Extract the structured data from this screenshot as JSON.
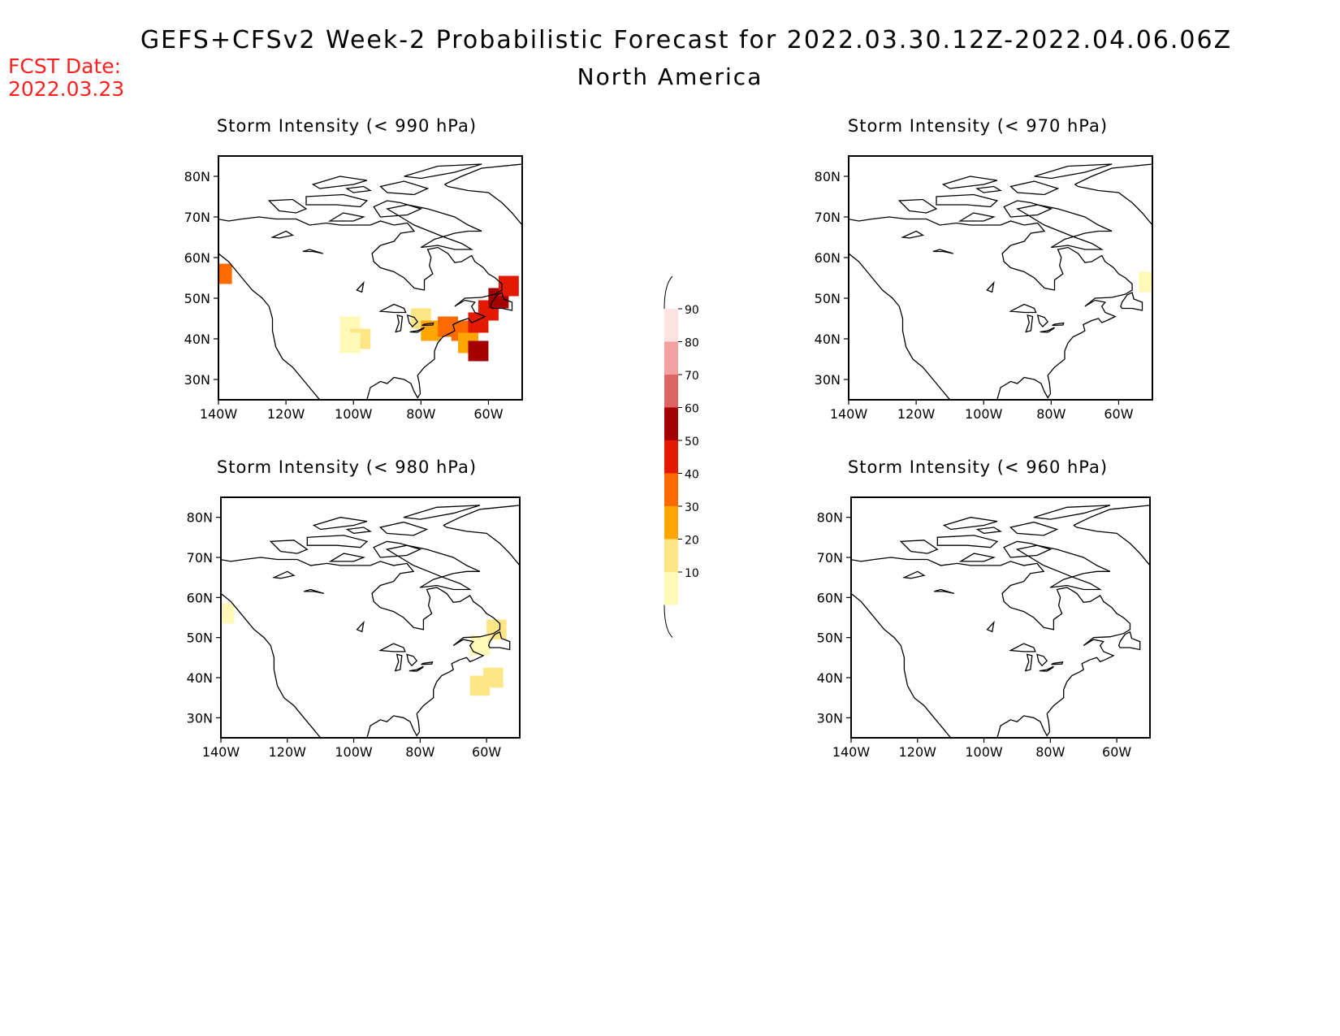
{
  "header": {
    "title": "GEFS+CFSv2 Week-2 Probabilistic Forecast for 2022.03.30.12Z-2022.04.06.06Z",
    "subtitle": "North America",
    "fcst_date_label": "FCST Date:",
    "fcst_date_value": "2022.03.23",
    "fcst_color": "#ff2020"
  },
  "panels": [
    {
      "title": "Storm Intensity (< 990 hPa)"
    },
    {
      "title": "Storm Intensity (< 970 hPa)"
    },
    {
      "title": "Storm Intensity (< 980 hPa)"
    },
    {
      "title": "Storm Intensity (< 960 hPa)"
    }
  ],
  "axes": {
    "lon_ticks": [
      "140W",
      "120W",
      "100W",
      "80W",
      "60W"
    ],
    "lat_ticks": [
      "80N",
      "70N",
      "60N",
      "50N",
      "40N",
      "30N"
    ]
  },
  "colorbar": {
    "levels": [
      "10",
      "20",
      "30",
      "40",
      "50",
      "60",
      "70",
      "80",
      "90"
    ],
    "colors": [
      "#fff9b8",
      "#fde686",
      "#fea500",
      "#ff6a00",
      "#e41a00",
      "#a50000",
      "#dc6464",
      "#f5a0a0",
      "#fde2e2"
    ]
  },
  "chart_data": {
    "type": "heatmap",
    "extent": {
      "lon": [
        -140,
        -50
      ],
      "lat": [
        25,
        85
      ]
    },
    "panels": [
      {
        "threshold": "< 990 hPa",
        "cells": [
          {
            "lon": -139,
            "lat": 56,
            "prob": 45
          },
          {
            "lon": -101,
            "lat": 43,
            "prob": 15
          },
          {
            "lon": -98,
            "lat": 40,
            "prob": 20
          },
          {
            "lon": -101,
            "lat": 39,
            "prob": 10
          },
          {
            "lon": -80,
            "lat": 45,
            "prob": 20
          },
          {
            "lon": -77,
            "lat": 42,
            "prob": 30
          },
          {
            "lon": -72,
            "lat": 43,
            "prob": 45
          },
          {
            "lon": -68,
            "lat": 42,
            "prob": 40
          },
          {
            "lon": -63,
            "lat": 44,
            "prob": 50
          },
          {
            "lon": -60,
            "lat": 47,
            "prob": 55
          },
          {
            "lon": -57,
            "lat": 50,
            "prob": 60
          },
          {
            "lon": -54,
            "lat": 53,
            "prob": 55
          },
          {
            "lon": -66,
            "lat": 39,
            "prob": 30
          },
          {
            "lon": -63,
            "lat": 37,
            "prob": 65
          }
        ]
      },
      {
        "threshold": "< 970 hPa",
        "cells": [
          {
            "lon": -51,
            "lat": 54,
            "prob": 10
          }
        ]
      },
      {
        "threshold": "< 980 hPa",
        "cells": [
          {
            "lon": -139,
            "lat": 56,
            "prob": 10
          },
          {
            "lon": -57,
            "lat": 52,
            "prob": 20
          },
          {
            "lon": -62,
            "lat": 48,
            "prob": 15
          },
          {
            "lon": -58,
            "lat": 40,
            "prob": 25
          },
          {
            "lon": -62,
            "lat": 38,
            "prob": 20
          }
        ]
      },
      {
        "threshold": "< 960 hPa",
        "cells": []
      }
    ]
  }
}
